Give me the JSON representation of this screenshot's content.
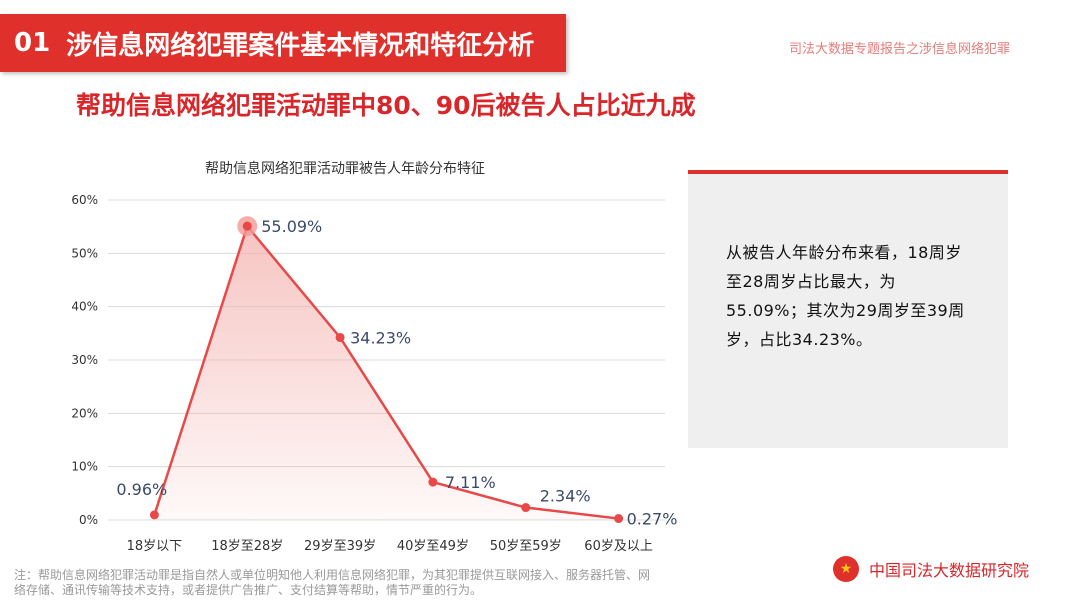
{
  "header": {
    "section_number": "01",
    "section_title": "涉信息网络犯罪案件基本情况和特征分析",
    "report_tag": "司法大数据专题报告之涉信息网络犯罪",
    "headline": "帮助信息网络犯罪活动罪中80、90后被告人占比近九成"
  },
  "chart_data": {
    "type": "area",
    "title": "帮助信息网络犯罪活动罪被告人年龄分布特征",
    "categories": [
      "18岁以下",
      "18岁至28岁",
      "29岁至39岁",
      "40岁至49岁",
      "50岁至59岁",
      "60岁及以上"
    ],
    "values": [
      0.96,
      55.09,
      34.23,
      7.11,
      2.34,
      0.27
    ],
    "data_labels": [
      "0.96%",
      "55.09%",
      "34.23%",
      "7.11%",
      "2.34%",
      "0.27%"
    ],
    "y_ticks": [
      "0%",
      "10%",
      "20%",
      "30%",
      "40%",
      "50%",
      "60%"
    ],
    "ylim": [
      0,
      60
    ],
    "grid": true,
    "highlight_index": 1,
    "colors": {
      "line": "#e84848",
      "fill": "#f3b1ad",
      "grid": "#d9d9d9",
      "highlight": "#f29a95"
    }
  },
  "panel": {
    "text": "从被告人年龄分布来看，18周岁至28周岁占比最大，为55.09%；其次为29周岁至39周岁，占比34.23%。"
  },
  "footer": {
    "note": "注：帮助信息网络犯罪活动罪是指自然人或单位明知他人利用信息网络犯罪，为其犯罪提供互联网接入、服务器托管、网络存储、通讯传输等技术支持，或者提供广告推广、支付结算等帮助，情节严重的行为。",
    "org_name": "中国司法大数据研究院",
    "emblem_icon": "national-emblem-icon"
  }
}
